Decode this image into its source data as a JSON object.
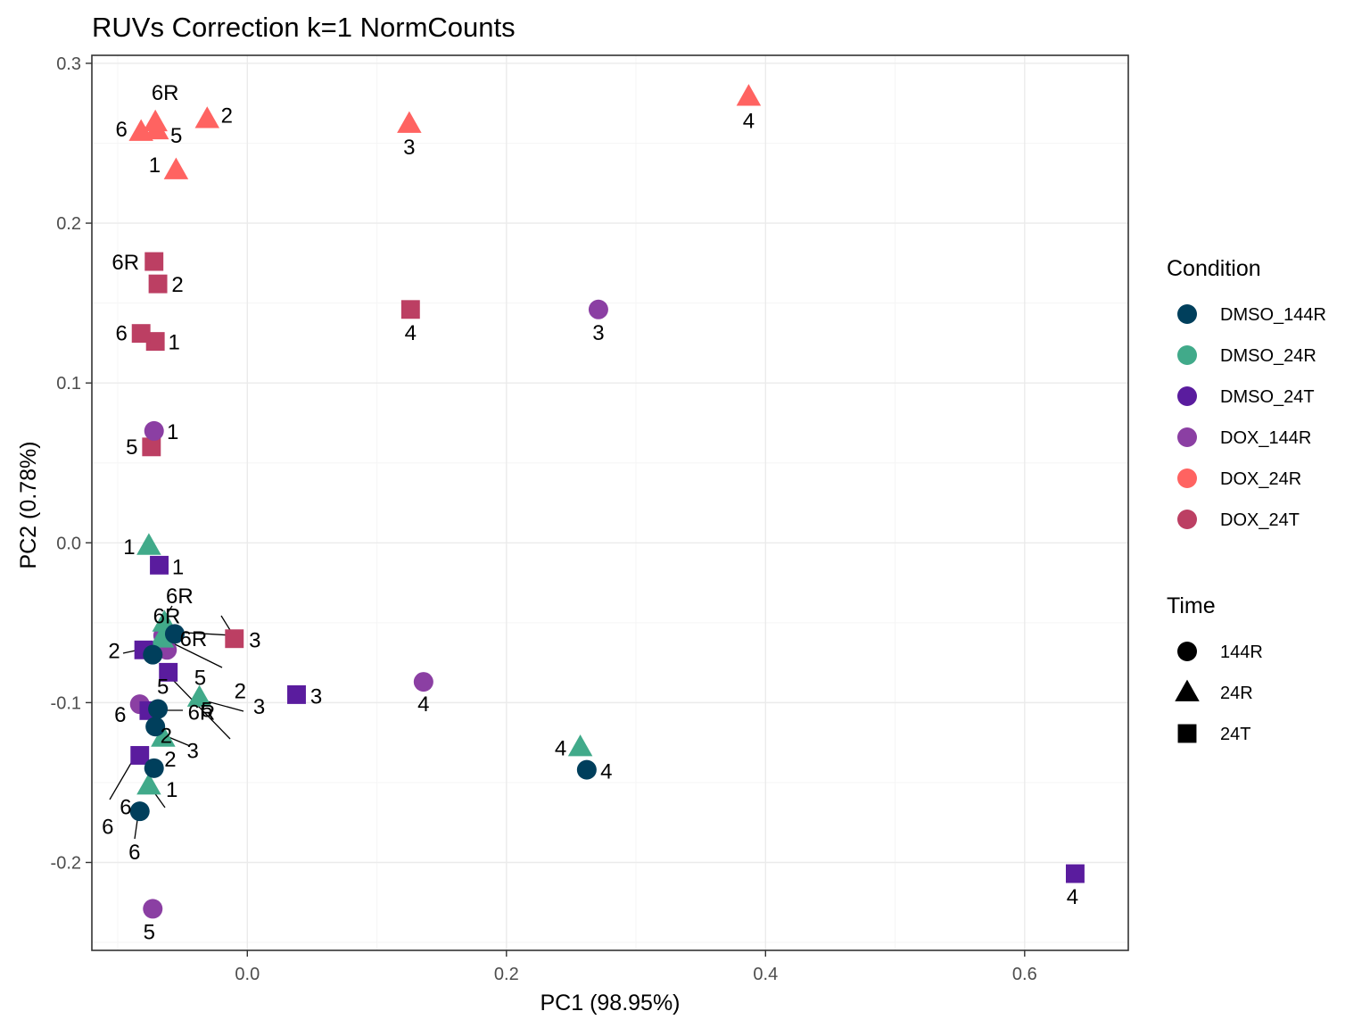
{
  "chart_data": {
    "type": "scatter",
    "title": "RUVs Correction k=1 NormCounts",
    "xlabel": "PC1 (98.95%)",
    "ylabel": "PC2 (0.78%)",
    "xlim": [
      -0.12,
      0.68
    ],
    "ylim": [
      -0.255,
      0.305
    ],
    "x_ticks": [
      0.0,
      0.2,
      0.4,
      0.6
    ],
    "x_tick_labels": [
      "0.0",
      "0.2",
      "0.4",
      "0.6"
    ],
    "y_ticks": [
      -0.2,
      -0.1,
      0.0,
      0.1,
      0.2,
      0.3
    ],
    "y_tick_labels": [
      "-0.2",
      "-0.1",
      "0.0",
      "0.1",
      "0.2",
      "0.3"
    ],
    "legends": {
      "condition": {
        "title": "Condition",
        "items": [
          {
            "label": "DMSO_144R",
            "color": "#003f5c"
          },
          {
            "label": "DMSO_24R",
            "color": "#41aa8a"
          },
          {
            "label": "DMSO_24T",
            "color": "#5a1c9e"
          },
          {
            "label": "DOX_144R",
            "color": "#8b3fa3"
          },
          {
            "label": "DOX_24R",
            "color": "#ff6361"
          },
          {
            "label": "DOX_24T",
            "color": "#bc3f63"
          }
        ]
      },
      "time": {
        "title": "Time",
        "items": [
          {
            "label": "144R",
            "shape": "circle"
          },
          {
            "label": "24R",
            "shape": "triangle"
          },
          {
            "label": "24T",
            "shape": "square"
          }
        ]
      }
    },
    "points": [
      {
        "condition": "DOX_24R",
        "time": "24R",
        "label": "1",
        "x": -0.055,
        "y": 0.233
      },
      {
        "condition": "DOX_24R",
        "time": "24R",
        "label": "2",
        "x": -0.031,
        "y": 0.265
      },
      {
        "condition": "DOX_24R",
        "time": "24R",
        "label": "3",
        "x": 0.125,
        "y": 0.262
      },
      {
        "condition": "DOX_24R",
        "time": "24R",
        "label": "4",
        "x": 0.387,
        "y": 0.279
      },
      {
        "condition": "DOX_24R",
        "time": "24R",
        "label": "5",
        "x": -0.07,
        "y": 0.258
      },
      {
        "condition": "DOX_24R",
        "time": "24R",
        "label": "6",
        "x": -0.082,
        "y": 0.257
      },
      {
        "condition": "DOX_24R",
        "time": "24R",
        "label": "6R",
        "x": -0.071,
        "y": 0.263
      },
      {
        "condition": "DOX_24T",
        "time": "24T",
        "label": "1",
        "x": -0.071,
        "y": 0.126
      },
      {
        "condition": "DOX_24T",
        "time": "24T",
        "label": "2",
        "x": -0.069,
        "y": 0.162
      },
      {
        "condition": "DOX_24T",
        "time": "24T",
        "label": "3",
        "x": -0.01,
        "y": -0.06
      },
      {
        "condition": "DOX_24T",
        "time": "24T",
        "label": "4",
        "x": 0.126,
        "y": 0.146
      },
      {
        "condition": "DOX_24T",
        "time": "24T",
        "label": "5",
        "x": -0.074,
        "y": 0.06
      },
      {
        "condition": "DOX_24T",
        "time": "24T",
        "label": "6",
        "x": -0.082,
        "y": 0.131
      },
      {
        "condition": "DOX_24T",
        "time": "24T",
        "label": "6R",
        "x": -0.072,
        "y": 0.176
      },
      {
        "condition": "DOX_144R",
        "time": "144R",
        "label": "1",
        "x": -0.072,
        "y": 0.07
      },
      {
        "condition": "DOX_144R",
        "time": "144R",
        "label": "2",
        "x": -0.062,
        "y": -0.067
      },
      {
        "condition": "DOX_144R",
        "time": "144R",
        "label": "3",
        "x": 0.271,
        "y": 0.146
      },
      {
        "condition": "DOX_144R",
        "time": "144R",
        "label": "4",
        "x": 0.136,
        "y": -0.087
      },
      {
        "condition": "DOX_144R",
        "time": "144R",
        "label": "5",
        "x": -0.073,
        "y": -0.229
      },
      {
        "condition": "DOX_144R",
        "time": "144R",
        "label": "6",
        "x": -0.083,
        "y": -0.101
      },
      {
        "condition": "DOX_144R",
        "time": "144R",
        "label": "6R",
        "x": -0.065,
        "y": -0.058
      },
      {
        "condition": "DMSO_24R",
        "time": "24R",
        "label": "1",
        "x": -0.076,
        "y": -0.002
      },
      {
        "condition": "DMSO_24R",
        "time": "24R",
        "label": "2",
        "x": -0.065,
        "y": -0.122
      },
      {
        "condition": "DMSO_24R",
        "time": "24R",
        "label": "3",
        "x": -0.037,
        "y": -0.097
      },
      {
        "condition": "DMSO_24R",
        "time": "24R",
        "label": "4",
        "x": 0.257,
        "y": -0.128
      },
      {
        "condition": "DMSO_24R",
        "time": "24R",
        "label": "5",
        "x": -0.066,
        "y": -0.06
      },
      {
        "condition": "DMSO_24R",
        "time": "24R",
        "label": "6",
        "x": -0.076,
        "y": -0.152
      },
      {
        "condition": "DMSO_24R",
        "time": "24R",
        "label": "6R",
        "x": -0.064,
        "y": -0.05
      },
      {
        "condition": "DMSO_24T",
        "time": "24T",
        "label": "1",
        "x": -0.068,
        "y": -0.014
      },
      {
        "condition": "DMSO_24T",
        "time": "24T",
        "label": "2",
        "x": -0.08,
        "y": -0.067
      },
      {
        "condition": "DMSO_24T",
        "time": "24T",
        "label": "3",
        "x": 0.038,
        "y": -0.095
      },
      {
        "condition": "DMSO_24T",
        "time": "24T",
        "label": "4",
        "x": 0.639,
        "y": -0.207
      },
      {
        "condition": "DMSO_24T",
        "time": "24T",
        "label": "5",
        "x": -0.061,
        "y": -0.081
      },
      {
        "condition": "DMSO_24T",
        "time": "24T",
        "label": "6",
        "x": -0.083,
        "y": -0.133
      },
      {
        "condition": "DMSO_24T",
        "time": "24T",
        "label": "6R",
        "x": -0.076,
        "y": -0.105
      },
      {
        "condition": "DMSO_144R",
        "time": "144R",
        "label": "1",
        "x": -0.072,
        "y": -0.141
      },
      {
        "condition": "DMSO_144R",
        "time": "144R",
        "label": "2",
        "x": -0.073,
        "y": -0.07
      },
      {
        "condition": "DMSO_144R",
        "time": "144R",
        "label": "3",
        "x": -0.071,
        "y": -0.115
      },
      {
        "condition": "DMSO_144R",
        "time": "144R",
        "label": "4",
        "x": 0.262,
        "y": -0.142
      },
      {
        "condition": "DMSO_144R",
        "time": "144R",
        "label": "5",
        "x": -0.069,
        "y": -0.104
      },
      {
        "condition": "DMSO_144R",
        "time": "144R",
        "label": "6",
        "x": -0.083,
        "y": -0.168
      },
      {
        "condition": "DMSO_144R",
        "time": "144R",
        "label": "6R",
        "x": -0.056,
        "y": -0.057
      }
    ]
  }
}
